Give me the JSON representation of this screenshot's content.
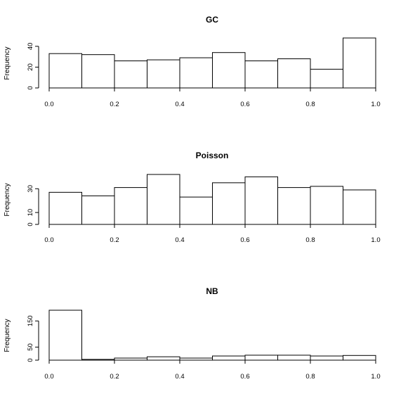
{
  "chart_data": [
    {
      "type": "bar",
      "title": "GC",
      "ylabel": "Frequency",
      "xlabel": "",
      "bins": [
        [
          0.0,
          0.1
        ],
        [
          0.1,
          0.2
        ],
        [
          0.2,
          0.3
        ],
        [
          0.3,
          0.4
        ],
        [
          0.4,
          0.5
        ],
        [
          0.5,
          0.6
        ],
        [
          0.6,
          0.7
        ],
        [
          0.7,
          0.8
        ],
        [
          0.8,
          0.9
        ],
        [
          0.9,
          1.0
        ]
      ],
      "values": [
        33,
        32,
        26,
        27,
        29,
        34,
        26,
        28,
        18,
        48
      ],
      "xlim": [
        0,
        1
      ],
      "ylim": [
        0,
        48
      ],
      "xticks": [
        "0.0",
        "0.2",
        "0.4",
        "0.6",
        "0.8",
        "1.0"
      ],
      "xtick_values": [
        0,
        0.2,
        0.4,
        0.6,
        0.8,
        1.0
      ],
      "yticks": [
        "0",
        "20",
        "40"
      ],
      "ytick_values": [
        0,
        20,
        40
      ],
      "grid": false
    },
    {
      "type": "bar",
      "title": "Poisson",
      "ylabel": "Frequency",
      "xlabel": "",
      "bins": [
        [
          0.0,
          0.1
        ],
        [
          0.1,
          0.2
        ],
        [
          0.2,
          0.3
        ],
        [
          0.3,
          0.4
        ],
        [
          0.4,
          0.5
        ],
        [
          0.5,
          0.6
        ],
        [
          0.6,
          0.7
        ],
        [
          0.7,
          0.8
        ],
        [
          0.8,
          0.9
        ],
        [
          0.9,
          1.0
        ]
      ],
      "values": [
        27,
        24,
        31,
        42,
        23,
        35,
        40,
        31,
        32,
        29
      ],
      "xlim": [
        0,
        1
      ],
      "ylim": [
        0,
        42
      ],
      "xticks": [
        "0.0",
        "0.2",
        "0.4",
        "0.6",
        "0.8",
        "1.0"
      ],
      "xtick_values": [
        0,
        0.2,
        0.4,
        0.6,
        0.8,
        1.0
      ],
      "yticks": [
        "0",
        "10",
        "30"
      ],
      "ytick_values": [
        0,
        10,
        30
      ],
      "grid": false
    },
    {
      "type": "bar",
      "title": "NB",
      "ylabel": "Frequency",
      "xlabel": "",
      "bins": [
        [
          0.0,
          0.1
        ],
        [
          0.1,
          0.2
        ],
        [
          0.2,
          0.3
        ],
        [
          0.3,
          0.4
        ],
        [
          0.4,
          0.5
        ],
        [
          0.5,
          0.6
        ],
        [
          0.6,
          0.7
        ],
        [
          0.7,
          0.8
        ],
        [
          0.8,
          0.9
        ],
        [
          0.9,
          1.0
        ]
      ],
      "values": [
        191,
        3,
        8,
        13,
        8,
        16,
        19,
        19,
        16,
        18
      ],
      "xlim": [
        0,
        1
      ],
      "ylim": [
        0,
        191
      ],
      "xticks": [
        "0.0",
        "0.2",
        "0.4",
        "0.6",
        "0.8",
        "1.0"
      ],
      "xtick_values": [
        0,
        0.2,
        0.4,
        0.6,
        0.8,
        1.0
      ],
      "yticks": [
        "0",
        "50",
        "150"
      ],
      "ytick_values": [
        0,
        50,
        150
      ],
      "grid": false
    }
  ]
}
